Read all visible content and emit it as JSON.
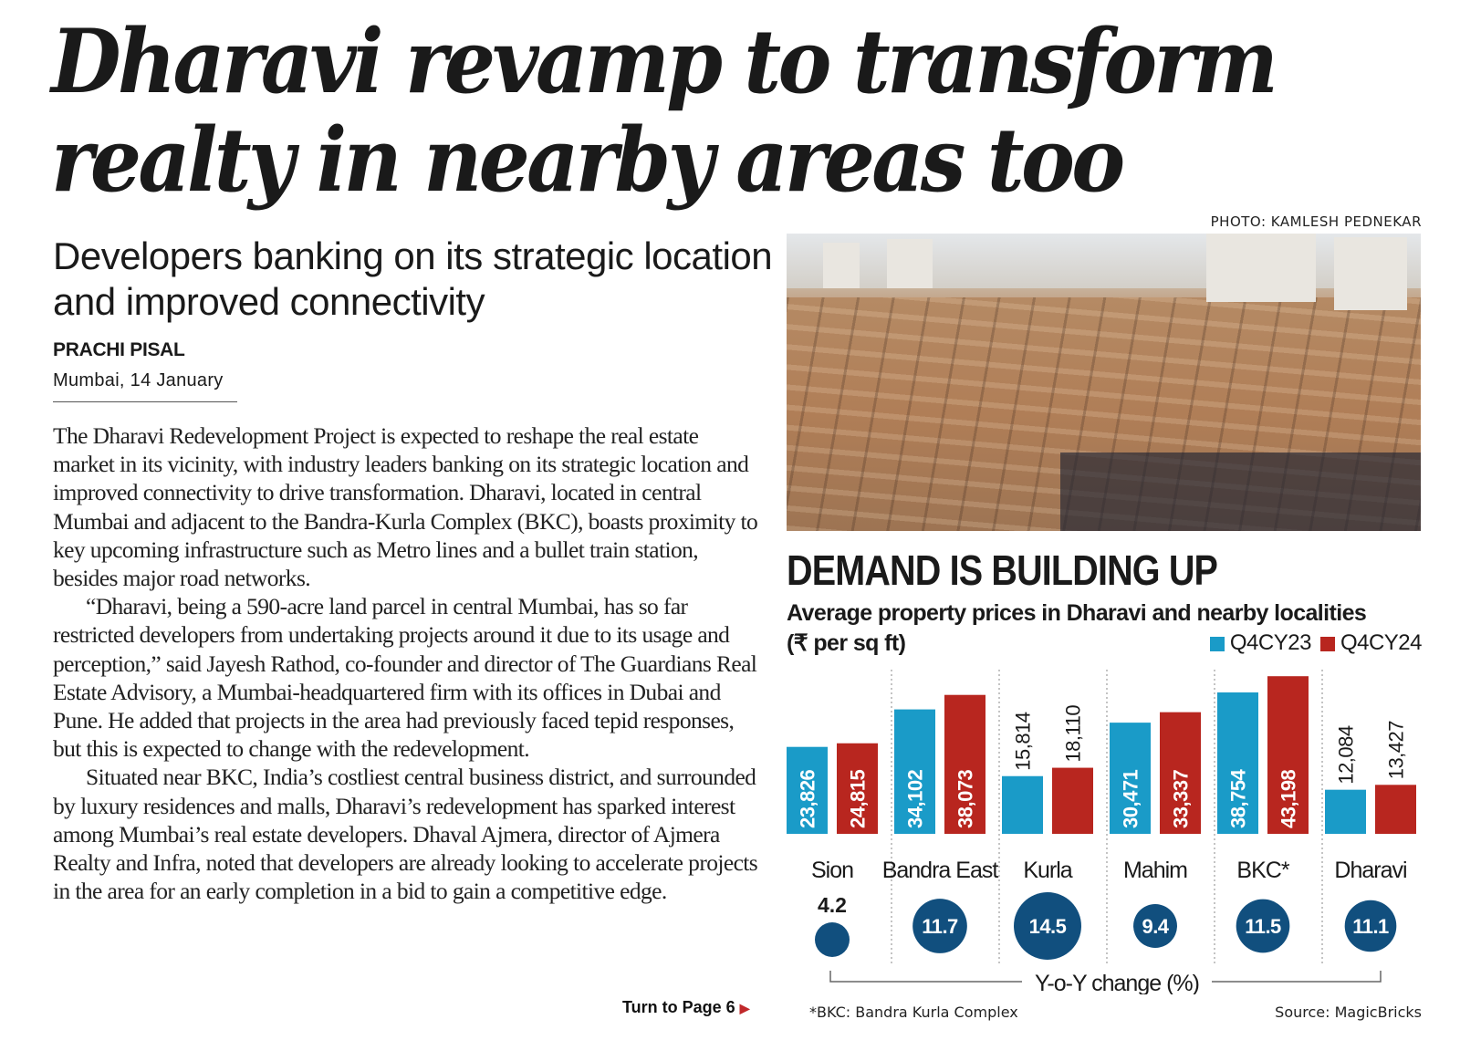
{
  "article": {
    "headline": "Dharavi revamp to transform realty in nearby areas too",
    "subheadline": "Developers banking on its strategic location and improved connectivity",
    "author": "PRACHI PISAL",
    "dateline": "Mumbai, 14 January",
    "paragraphs": [
      "The Dharavi Redevelopment Project is expected to reshape the real estate market in its vicinity, with industry leaders banking on its strategic location and improved connectivity to drive transformation. Dharavi, located in central Mumbai and adjacent to the Bandra-Kurla Complex (BKC), boasts proximity to key upcoming infrastructure such as Metro lines and a bullet train station, besides major road networks.",
      "“Dharavi, being a 590-acre land parcel in central Mumbai, has so far restricted developers from undertaking projects around it due to its usage and perception,” said Jayesh Rathod, co-founder and director of The Guardians Real Estate Advisory, a Mumbai-headquartered firm with its offices in Dubai and Pune. He added that projects in the area had previously faced tepid responses, but this is expected to change with the redevelopment.",
      "Situated near BKC, India’s costliest central business district, and surrounded by luxury residences and malls, Dharavi’s redevelopment has sparked interest among Mumbai’s real estate developers. Dhaval Ajmera, director of Ajmera Realty and Infra, noted that developers are already looking to accelerate projects in the area for an early completion in a bid to gain a competitive edge."
    ],
    "continuation": "Turn to Page 6",
    "continuation_icon": "triangle-right-icon"
  },
  "photo": {
    "credit": "PHOTO: KAMLESH PEDNEKAR",
    "description": "Aerial view of Dharavi rooftops with high-rise buildings in the background"
  },
  "chart_data": {
    "type": "bar",
    "title": "DEMAND IS BUILDING UP",
    "subtitle": "Average property prices in Dharavi and nearby localities",
    "ylabel": "(₹ per sq ft)",
    "xlabel": "",
    "categories": [
      "Sion",
      "Bandra East",
      "Kurla",
      "Mahim",
      "BKC*",
      "Dharavi"
    ],
    "series": [
      {
        "name": "Q4CY23",
        "color": "#1a9bc8",
        "values": [
          23826,
          34102,
          15814,
          30471,
          38754,
          12084
        ],
        "labels": [
          "23,826",
          "34,102",
          "15,814",
          "30,471",
          "38,754",
          "12,084"
        ]
      },
      {
        "name": "Q4CY24",
        "color": "#b8261f",
        "values": [
          24815,
          38073,
          18110,
          33337,
          43198,
          13427
        ],
        "labels": [
          "24,815",
          "38,073",
          "18,110",
          "33,337",
          "43,198",
          "13,427"
        ]
      }
    ],
    "ylim": [
      0,
      45000
    ],
    "grid": false,
    "legend_position": "top-right",
    "yoy_change": {
      "label": "Y-o-Y change (%)",
      "color": "#114f7e",
      "values": [
        4.2,
        11.7,
        14.5,
        9.4,
        11.5,
        11.1
      ],
      "labels": [
        "4.2",
        "11.7",
        "14.5",
        "9.4",
        "11.5",
        "11.1"
      ]
    },
    "footnote": "*BKC: Bandra Kurla Complex",
    "source": "Source: MagicBricks"
  }
}
